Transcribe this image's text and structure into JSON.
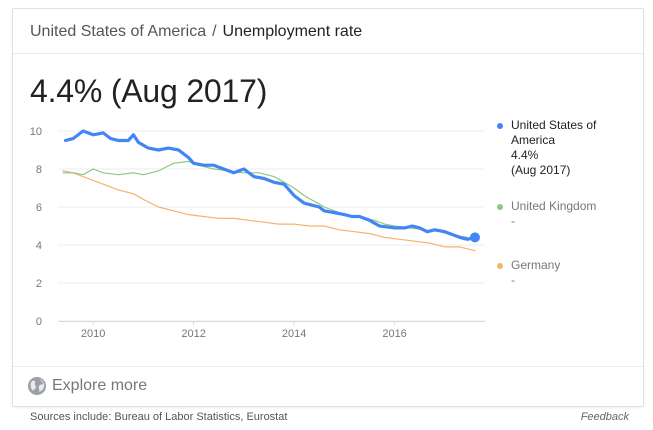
{
  "breadcrumb": {
    "country": "United States of America",
    "separator": "/",
    "metric": "Unemployment rate"
  },
  "headline": "4.4% (Aug 2017)",
  "legend": [
    {
      "name": "United States of America",
      "value": "4.4%",
      "date": "(Aug 2017)",
      "color": "#4285f4"
    },
    {
      "name": "United Kingdom",
      "value": "-",
      "date": "",
      "color": "#8bc97f"
    },
    {
      "name": "Germany",
      "value": "-",
      "date": "",
      "color": "#f6b26b"
    }
  ],
  "explore_label": "Explore more",
  "sources": "Sources include: Bureau of Labor Statistics, Eurostat",
  "feedback": "Feedback",
  "chart_data": {
    "type": "line",
    "xlabel": "",
    "ylabel": "",
    "xlim": [
      2009.3,
      2017.8
    ],
    "ylim": [
      0,
      10
    ],
    "x_ticks": [
      "2010",
      "2012",
      "2014",
      "2016"
    ],
    "y_ticks": [
      "0",
      "2",
      "4",
      "6",
      "8",
      "10"
    ],
    "grid": "horizontal",
    "legend_position": "right",
    "series": [
      {
        "name": "United States of America",
        "color": "#4285f4",
        "points": [
          [
            2009.45,
            9.5
          ],
          [
            2009.6,
            9.6
          ],
          [
            2009.8,
            10.0
          ],
          [
            2010.0,
            9.8
          ],
          [
            2010.2,
            9.9
          ],
          [
            2010.35,
            9.6
          ],
          [
            2010.5,
            9.5
          ],
          [
            2010.7,
            9.5
          ],
          [
            2010.8,
            9.8
          ],
          [
            2010.9,
            9.4
          ],
          [
            2011.1,
            9.1
          ],
          [
            2011.3,
            9.0
          ],
          [
            2011.5,
            9.1
          ],
          [
            2011.7,
            9.0
          ],
          [
            2011.9,
            8.6
          ],
          [
            2012.0,
            8.3
          ],
          [
            2012.2,
            8.2
          ],
          [
            2012.4,
            8.2
          ],
          [
            2012.6,
            8.0
          ],
          [
            2012.8,
            7.8
          ],
          [
            2013.0,
            8.0
          ],
          [
            2013.2,
            7.6
          ],
          [
            2013.4,
            7.5
          ],
          [
            2013.6,
            7.3
          ],
          [
            2013.8,
            7.2
          ],
          [
            2013.9,
            6.9
          ],
          [
            2014.0,
            6.6
          ],
          [
            2014.2,
            6.2
          ],
          [
            2014.35,
            6.1
          ],
          [
            2014.5,
            6.0
          ],
          [
            2014.6,
            5.8
          ],
          [
            2014.8,
            5.7
          ],
          [
            2015.0,
            5.6
          ],
          [
            2015.15,
            5.5
          ],
          [
            2015.3,
            5.5
          ],
          [
            2015.5,
            5.3
          ],
          [
            2015.7,
            5.0
          ],
          [
            2016.0,
            4.9
          ],
          [
            2016.2,
            4.9
          ],
          [
            2016.35,
            5.0
          ],
          [
            2016.5,
            4.9
          ],
          [
            2016.65,
            4.7
          ],
          [
            2016.8,
            4.8
          ],
          [
            2017.0,
            4.7
          ],
          [
            2017.2,
            4.5
          ],
          [
            2017.3,
            4.4
          ],
          [
            2017.45,
            4.3
          ],
          [
            2017.6,
            4.4
          ]
        ]
      },
      {
        "name": "United Kingdom",
        "color": "#8bc97f",
        "points": [
          [
            2009.4,
            7.8
          ],
          [
            2009.6,
            7.8
          ],
          [
            2009.8,
            7.7
          ],
          [
            2010.0,
            8.0
          ],
          [
            2010.2,
            7.8
          ],
          [
            2010.5,
            7.7
          ],
          [
            2010.8,
            7.8
          ],
          [
            2011.0,
            7.7
          ],
          [
            2011.3,
            7.9
          ],
          [
            2011.6,
            8.3
          ],
          [
            2011.9,
            8.4
          ],
          [
            2012.1,
            8.2
          ],
          [
            2012.4,
            8.0
          ],
          [
            2012.7,
            7.9
          ],
          [
            2013.0,
            7.8
          ],
          [
            2013.3,
            7.8
          ],
          [
            2013.6,
            7.6
          ],
          [
            2013.8,
            7.3
          ],
          [
            2014.0,
            7.0
          ],
          [
            2014.2,
            6.6
          ],
          [
            2014.4,
            6.3
          ],
          [
            2014.6,
            6.0
          ],
          [
            2014.8,
            5.8
          ],
          [
            2015.0,
            5.6
          ],
          [
            2015.2,
            5.5
          ],
          [
            2015.4,
            5.4
          ],
          [
            2015.6,
            5.3
          ],
          [
            2015.8,
            5.1
          ],
          [
            2016.0,
            5.0
          ],
          [
            2016.3,
            4.9
          ],
          [
            2016.6,
            4.8
          ],
          [
            2016.9,
            4.7
          ],
          [
            2017.2,
            4.5
          ],
          [
            2017.45,
            4.4
          ]
        ]
      },
      {
        "name": "Germany",
        "color": "#f6b26b",
        "points": [
          [
            2009.4,
            7.9
          ],
          [
            2009.6,
            7.8
          ],
          [
            2009.9,
            7.5
          ],
          [
            2010.2,
            7.2
          ],
          [
            2010.5,
            6.9
          ],
          [
            2010.8,
            6.7
          ],
          [
            2011.0,
            6.4
          ],
          [
            2011.3,
            6.0
          ],
          [
            2011.6,
            5.8
          ],
          [
            2011.9,
            5.6
          ],
          [
            2012.2,
            5.5
          ],
          [
            2012.5,
            5.4
          ],
          [
            2012.8,
            5.4
          ],
          [
            2013.1,
            5.3
          ],
          [
            2013.4,
            5.2
          ],
          [
            2013.7,
            5.1
          ],
          [
            2014.0,
            5.1
          ],
          [
            2014.3,
            5.0
          ],
          [
            2014.6,
            5.0
          ],
          [
            2014.9,
            4.8
          ],
          [
            2015.2,
            4.7
          ],
          [
            2015.5,
            4.6
          ],
          [
            2015.8,
            4.4
          ],
          [
            2016.1,
            4.3
          ],
          [
            2016.4,
            4.2
          ],
          [
            2016.7,
            4.1
          ],
          [
            2017.0,
            3.9
          ],
          [
            2017.3,
            3.9
          ],
          [
            2017.6,
            3.7
          ]
        ]
      }
    ]
  }
}
